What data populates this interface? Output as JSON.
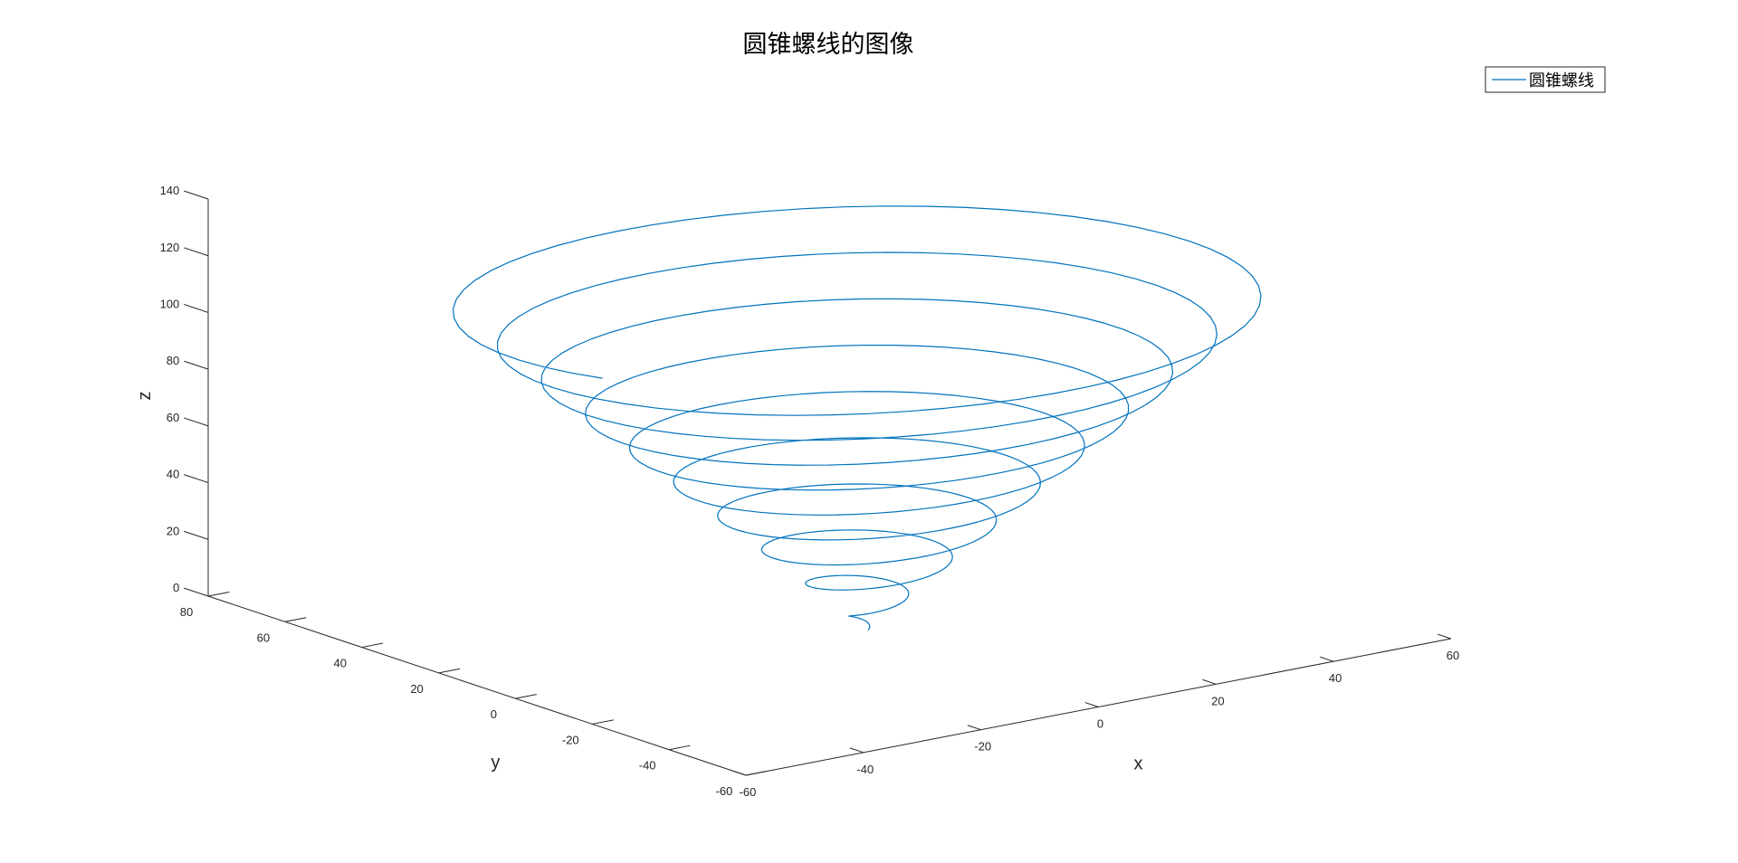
{
  "chart_data": {
    "type": "line",
    "projection": "3d",
    "title": "圆锥螺线的图像",
    "xlabel": "x",
    "ylabel": "y",
    "zlabel": "z",
    "xlim": [
      -60,
      60
    ],
    "ylim": [
      -60,
      80
    ],
    "zlim": [
      0,
      140
    ],
    "x_ticks": [
      "-60",
      "-40",
      "-20",
      "0",
      "20",
      "40",
      "60"
    ],
    "y_ticks": [
      "-60",
      "-40",
      "-20",
      "0",
      "20",
      "40",
      "60",
      "80"
    ],
    "z_ticks": [
      "0",
      "20",
      "40",
      "60",
      "80",
      "100",
      "120",
      "140"
    ],
    "legend_position": "top-right",
    "series": [
      {
        "name": "圆锥螺线",
        "color": "#0072BD",
        "equation": {
          "x": "t*cos(t)",
          "y": "t*sin(t)",
          "z": "2*t"
        },
        "t_range": [
          0,
          60
        ],
        "samples": 600
      }
    ]
  }
}
